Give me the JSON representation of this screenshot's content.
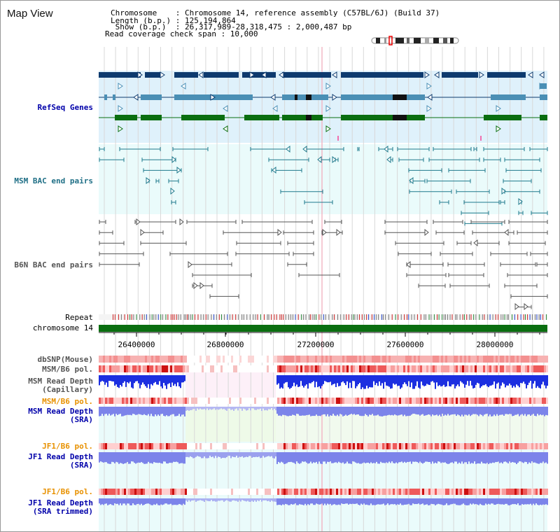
{
  "header": {
    "title": "Map View",
    "info_lines": [
      "Chromosome    : Chromosome 14, reference assembly (C57BL/6J) (Build 37)",
      "Length (b.p.) : 125,194,864",
      " Show (b.p.)  : 26,317,989-28,318,475 : 2,000,487 bp",
      "Read coverage check span : 10,000"
    ]
  },
  "tracks": {
    "refseq": "RefSeq Genes",
    "msm_bac": "MSM BAC end pairs",
    "b6n_bac": "B6N BAC end pairs",
    "repeat": "Repeat",
    "chromosome": "chromosome 14",
    "dbsnp": "dbSNP(Mouse)",
    "msm_pol": "MSM/B6 pol.",
    "msm_depth_cap_1": "MSM Read Depth",
    "msm_depth_cap_2": "(Capillary)",
    "msm_pol_sra": "MSM/B6 pol.",
    "msm_depth_sra_1": "MSM Read Depth",
    "msm_depth_sra_2": "(SRA)",
    "jf1_pol": "JF1/B6 pol.",
    "jf1_depth_1": "JF1 Read Depth",
    "jf1_depth_2": "(SRA)",
    "jf1_pol_trim": "JF1/B6 pol.",
    "jf1_trim_1": "JF1 Read Depth",
    "jf1_trim_2": "(SRA trimmed)"
  },
  "axis": {
    "ticks": [
      "26400000",
      "26800000",
      "27200000",
      "27600000",
      "28000000"
    ]
  },
  "colors": {
    "refseq_bg": "#dff1fb",
    "msm_bg": "#eafbfb",
    "gene_navy": "#0d3a6e",
    "gene_teal": "#4a8fb5",
    "gene_green": "#0a6e10",
    "bac_teal": "#1f7a8c",
    "bac_gray": "#555555",
    "chrom_green": "#0a6e10",
    "depth_blue": "#1c2fe0",
    "depth_light": "#7c84ea",
    "pol_red": "#e33a3a",
    "axis_label_blue": "#0000aa",
    "axis_label_orange": "#e89100",
    "grid": "#d8d8d8"
  }
}
